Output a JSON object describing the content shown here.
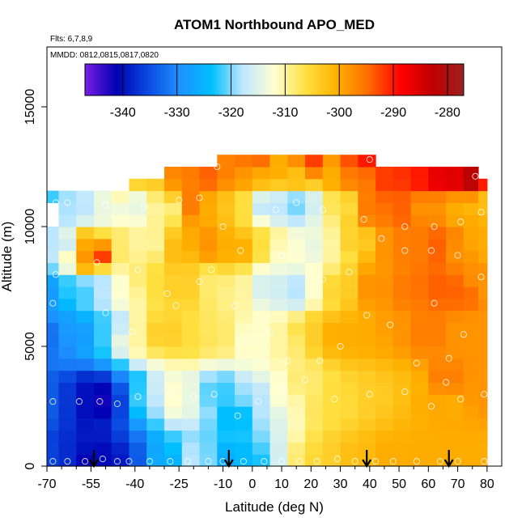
{
  "chart_data": {
    "type": "heatmap",
    "title": "ATOM1 Northbound APO_MED",
    "annotations": [
      "Flts: 6,7,8,9",
      "MMDD: 0812,0815,0817,0820"
    ],
    "xlabel": "Latitude (deg N)",
    "ylabel": "Altitude (m)",
    "xlim": [
      -70,
      85
    ],
    "ylim": [
      0,
      17500
    ],
    "x_ticks": [
      -70,
      -55,
      -40,
      -25,
      -10,
      0,
      10,
      20,
      30,
      40,
      50,
      60,
      70,
      80
    ],
    "x_tick_labels": [
      "-70",
      "-55",
      "-40",
      "-25",
      "-10",
      "0",
      "10",
      "20",
      "30",
      "40",
      "50",
      "60",
      "70",
      "80"
    ],
    "x_minor_ticks": [
      -65,
      -60,
      -50,
      -45,
      -35,
      -30,
      -20,
      -15,
      -5,
      5,
      15,
      25,
      35,
      45,
      55,
      65,
      75
    ],
    "y_ticks": [
      0,
      5000,
      10000,
      15000
    ],
    "y_tick_labels": [
      "0",
      "5000",
      "10000",
      "15000"
    ],
    "colorbar": {
      "range": [
        -347,
        -277
      ],
      "ticks": [
        -340,
        -330,
        -320,
        -310,
        -300,
        -290,
        -280
      ],
      "tick_labels": [
        "-340",
        "-330",
        "-320",
        "-310",
        "-300",
        "-290",
        "-280"
      ],
      "colors": [
        "#7a1fe0",
        "#0000b4",
        "#0a4be0",
        "#1e90ff",
        "#00bfff",
        "#bfe7ff",
        "#ffffd0",
        "#ffe040",
        "#ffb000",
        "#ff6a00",
        "#ff0000",
        "#c00000",
        "#9b2020"
      ]
    },
    "profile_markers_lat": [
      -54,
      -8,
      39,
      67
    ],
    "grid_lat": [
      -69,
      -63,
      -57,
      -51,
      -45,
      -39,
      -33,
      -27,
      -21,
      -15,
      -9,
      -3,
      3,
      9,
      15,
      21,
      27,
      33,
      39,
      45,
      51,
      57,
      63,
      69,
      75,
      79
    ],
    "grid_alt": [
      250,
      750,
      1250,
      1750,
      2250,
      2750,
      3250,
      3750,
      4250,
      4750,
      5250,
      5750,
      6250,
      6750,
      7250,
      7750,
      8250,
      8750,
      9250,
      9750,
      10250,
      10750,
      11250,
      11750,
      12250,
      12750
    ],
    "samples": [
      {
        "lat": -68,
        "alt": 200,
        "v": -336
      },
      {
        "lat": -60,
        "alt": 300,
        "v": -338
      },
      {
        "lat": -55,
        "alt": 200,
        "v": -342
      },
      {
        "lat": -48,
        "alt": 250,
        "v": -340
      },
      {
        "lat": -40,
        "alt": 200,
        "v": -334
      },
      {
        "lat": -30,
        "alt": 250,
        "v": -326
      },
      {
        "lat": -22,
        "alt": 300,
        "v": -318
      },
      {
        "lat": -15,
        "alt": 250,
        "v": -320
      },
      {
        "lat": -8,
        "alt": 200,
        "v": -326
      },
      {
        "lat": 0,
        "alt": 250,
        "v": -324
      },
      {
        "lat": 8,
        "alt": 300,
        "v": -316
      },
      {
        "lat": 16,
        "alt": 200,
        "v": -308
      },
      {
        "lat": 25,
        "alt": 250,
        "v": -304
      },
      {
        "lat": 35,
        "alt": 200,
        "v": -302
      },
      {
        "lat": 45,
        "alt": 250,
        "v": -300
      },
      {
        "lat": 55,
        "alt": 200,
        "v": -300
      },
      {
        "lat": 65,
        "alt": 250,
        "v": -300
      },
      {
        "lat": 75,
        "alt": 200,
        "v": -300
      },
      {
        "lat": 79,
        "alt": 300,
        "v": -300
      },
      {
        "lat": -68,
        "alt": 2700,
        "v": -334
      },
      {
        "lat": -58,
        "alt": 2700,
        "v": -340
      },
      {
        "lat": -52,
        "alt": 2700,
        "v": -342
      },
      {
        "lat": -45,
        "alt": 2600,
        "v": -336
      },
      {
        "lat": -38,
        "alt": 2800,
        "v": -322
      },
      {
        "lat": -28,
        "alt": 2900,
        "v": -312
      },
      {
        "lat": -20,
        "alt": 2900,
        "v": -314
      },
      {
        "lat": -12,
        "alt": 3000,
        "v": -322
      },
      {
        "lat": -6,
        "alt": 2100,
        "v": -324
      },
      {
        "lat": 2,
        "alt": 2700,
        "v": -318
      },
      {
        "lat": 10,
        "alt": 3200,
        "v": -312
      },
      {
        "lat": 18,
        "alt": 3500,
        "v": -308
      },
      {
        "lat": 28,
        "alt": 2800,
        "v": -306
      },
      {
        "lat": 40,
        "alt": 3000,
        "v": -304
      },
      {
        "lat": 52,
        "alt": 3100,
        "v": -302
      },
      {
        "lat": 60,
        "alt": 2900,
        "v": -300
      },
      {
        "lat": 66,
        "alt": 3500,
        "v": -296
      },
      {
        "lat": 70,
        "alt": 2700,
        "v": -300
      },
      {
        "lat": 78,
        "alt": 3000,
        "v": -298
      },
      {
        "lat": -68,
        "alt": 5400,
        "v": -332
      },
      {
        "lat": -60,
        "alt": 5600,
        "v": -328
      },
      {
        "lat": -50,
        "alt": 5800,
        "v": -322
      },
      {
        "lat": -40,
        "alt": 5500,
        "v": -310
      },
      {
        "lat": -30,
        "alt": 5600,
        "v": -304
      },
      {
        "lat": -20,
        "alt": 5400,
        "v": -306
      },
      {
        "lat": -10,
        "alt": 5500,
        "v": -308
      },
      {
        "lat": 0,
        "alt": 5300,
        "v": -312
      },
      {
        "lat": 10,
        "alt": 5400,
        "v": -310
      },
      {
        "lat": 20,
        "alt": 5600,
        "v": -304
      },
      {
        "lat": 30,
        "alt": 5500,
        "v": -300
      },
      {
        "lat": 40,
        "alt": 5600,
        "v": -300
      },
      {
        "lat": 50,
        "alt": 5800,
        "v": -298
      },
      {
        "lat": 60,
        "alt": 5700,
        "v": -296
      },
      {
        "lat": 70,
        "alt": 5500,
        "v": -298
      },
      {
        "lat": 78,
        "alt": 5800,
        "v": -298
      },
      {
        "lat": -68,
        "alt": 7200,
        "v": -328
      },
      {
        "lat": -60,
        "alt": 7400,
        "v": -322
      },
      {
        "lat": -52,
        "alt": 7600,
        "v": -318
      },
      {
        "lat": -44,
        "alt": 7400,
        "v": -312
      },
      {
        "lat": -34,
        "alt": 7600,
        "v": -306
      },
      {
        "lat": -24,
        "alt": 7500,
        "v": -304
      },
      {
        "lat": -14,
        "alt": 7600,
        "v": -308
      },
      {
        "lat": -4,
        "alt": 7400,
        "v": -310
      },
      {
        "lat": 6,
        "alt": 7500,
        "v": -316
      },
      {
        "lat": 14,
        "alt": 7400,
        "v": -318
      },
      {
        "lat": 22,
        "alt": 7600,
        "v": -312
      },
      {
        "lat": 30,
        "alt": 7500,
        "v": -304
      },
      {
        "lat": 40,
        "alt": 7500,
        "v": -298
      },
      {
        "lat": 52,
        "alt": 7400,
        "v": -296
      },
      {
        "lat": 62,
        "alt": 7500,
        "v": -294
      },
      {
        "lat": 72,
        "alt": 7300,
        "v": -294
      },
      {
        "lat": 78,
        "alt": 7600,
        "v": -298
      },
      {
        "lat": -66,
        "alt": 9200,
        "v": -318
      },
      {
        "lat": -58,
        "alt": 9000,
        "v": -300
      },
      {
        "lat": -54,
        "alt": 8800,
        "v": -290
      },
      {
        "lat": -46,
        "alt": 9200,
        "v": -308
      },
      {
        "lat": -36,
        "alt": 9300,
        "v": -310
      },
      {
        "lat": -26,
        "alt": 9000,
        "v": -302
      },
      {
        "lat": -16,
        "alt": 9300,
        "v": -298
      },
      {
        "lat": -6,
        "alt": 9100,
        "v": -300
      },
      {
        "lat": 4,
        "alt": 9300,
        "v": -306
      },
      {
        "lat": 12,
        "alt": 9000,
        "v": -312
      },
      {
        "lat": 20,
        "alt": 9200,
        "v": -314
      },
      {
        "lat": 28,
        "alt": 9100,
        "v": -310
      },
      {
        "lat": 36,
        "alt": 9300,
        "v": -304
      },
      {
        "lat": 44,
        "alt": 9100,
        "v": -298
      },
      {
        "lat": 54,
        "alt": 9200,
        "v": -296
      },
      {
        "lat": 64,
        "alt": 9200,
        "v": -294
      },
      {
        "lat": 72,
        "alt": 9000,
        "v": -298
      },
      {
        "lat": 78,
        "alt": 9300,
        "v": -300
      },
      {
        "lat": -68,
        "alt": 10800,
        "v": -322
      },
      {
        "lat": -60,
        "alt": 10800,
        "v": -318
      },
      {
        "lat": -50,
        "alt": 10700,
        "v": -314
      },
      {
        "lat": -40,
        "alt": 10900,
        "v": -314
      },
      {
        "lat": -30,
        "alt": 10800,
        "v": -310
      },
      {
        "lat": -22,
        "alt": 11000,
        "v": -296
      },
      {
        "lat": -14,
        "alt": 10800,
        "v": -300
      },
      {
        "lat": -4,
        "alt": 10900,
        "v": -306
      },
      {
        "lat": 6,
        "alt": 10900,
        "v": -318
      },
      {
        "lat": 14,
        "alt": 10900,
        "v": -320
      },
      {
        "lat": 22,
        "alt": 10900,
        "v": -316
      },
      {
        "lat": 30,
        "alt": 10900,
        "v": -306
      },
      {
        "lat": 40,
        "alt": 10800,
        "v": -296
      },
      {
        "lat": 50,
        "alt": 10800,
        "v": -294
      },
      {
        "lat": 60,
        "alt": 10900,
        "v": -298
      },
      {
        "lat": 70,
        "alt": 10800,
        "v": -300
      },
      {
        "lat": 78,
        "alt": 11000,
        "v": -302
      },
      {
        "lat": -42,
        "alt": 12000,
        "v": -304
      },
      {
        "lat": -32,
        "alt": 12000,
        "v": -304
      },
      {
        "lat": -24,
        "alt": 12100,
        "v": -296
      },
      {
        "lat": -14,
        "alt": 12200,
        "v": -294
      },
      {
        "lat": -4,
        "alt": 12300,
        "v": -298
      },
      {
        "lat": 6,
        "alt": 12200,
        "v": -300
      },
      {
        "lat": 16,
        "alt": 12100,
        "v": -302
      },
      {
        "lat": 26,
        "alt": 12100,
        "v": -300
      },
      {
        "lat": 36,
        "alt": 12100,
        "v": -296
      },
      {
        "lat": 46,
        "alt": 12000,
        "v": -292
      },
      {
        "lat": 56,
        "alt": 12000,
        "v": -290
      },
      {
        "lat": 66,
        "alt": 12000,
        "v": -286
      },
      {
        "lat": 74,
        "alt": 11900,
        "v": -282
      },
      {
        "lat": -20,
        "alt": 12700,
        "v": -296
      },
      {
        "lat": 0,
        "alt": 12800,
        "v": -294
      },
      {
        "lat": 20,
        "alt": 12800,
        "v": -292
      },
      {
        "lat": 38,
        "alt": 12800,
        "v": -290
      }
    ],
    "coverage": [
      {
        "alt_max": 250,
        "lat_min": -69,
        "lat_max": 79
      },
      {
        "alt_max": 9750,
        "lat_min": -69,
        "lat_max": 79
      },
      {
        "alt_max": 10750,
        "lat_min": -66,
        "lat_max": 79
      },
      {
        "alt_max": 11250,
        "lat_min": -69,
        "lat_max": 79
      },
      {
        "alt_max": 11750,
        "lat_min": -42,
        "lat_max": 79
      },
      {
        "alt_max": 12250,
        "lat_min": -28,
        "lat_max": 75
      },
      {
        "alt_max": 12750,
        "lat_min": -12,
        "lat_max": 41
      }
    ],
    "obs_circles": [
      {
        "lat": -68,
        "alt": 200
      },
      {
        "lat": -63,
        "alt": 200
      },
      {
        "lat": -57,
        "alt": 200
      },
      {
        "lat": -51,
        "alt": 300
      },
      {
        "lat": -46,
        "alt": 200
      },
      {
        "lat": -42,
        "alt": 200
      },
      {
        "lat": -35,
        "alt": 200
      },
      {
        "lat": -28,
        "alt": 200
      },
      {
        "lat": -22,
        "alt": 200
      },
      {
        "lat": -15,
        "alt": 200
      },
      {
        "lat": -10,
        "alt": 200
      },
      {
        "lat": -3,
        "alt": 200
      },
      {
        "lat": 4,
        "alt": 200
      },
      {
        "lat": 10,
        "alt": 200
      },
      {
        "lat": 16,
        "alt": 200
      },
      {
        "lat": 22,
        "alt": 200
      },
      {
        "lat": 29,
        "alt": 300
      },
      {
        "lat": 35,
        "alt": 200
      },
      {
        "lat": 42,
        "alt": 200
      },
      {
        "lat": 48,
        "alt": 200
      },
      {
        "lat": 56,
        "alt": 200
      },
      {
        "lat": 64,
        "alt": 200
      },
      {
        "lat": 70,
        "alt": 200
      },
      {
        "lat": 79,
        "alt": 200
      },
      {
        "lat": -68,
        "alt": 2700
      },
      {
        "lat": -59,
        "alt": 2700
      },
      {
        "lat": -52,
        "alt": 2700
      },
      {
        "lat": -46,
        "alt": 2600
      },
      {
        "lat": -39,
        "alt": 2900
      },
      {
        "lat": -28,
        "alt": 3000
      },
      {
        "lat": -20,
        "alt": 2900
      },
      {
        "lat": -13,
        "alt": 3000
      },
      {
        "lat": -5,
        "alt": 2100
      },
      {
        "lat": 2,
        "alt": 2700
      },
      {
        "lat": 11,
        "alt": 3200
      },
      {
        "lat": 18,
        "alt": 3600
      },
      {
        "lat": 28,
        "alt": 2800
      },
      {
        "lat": 40,
        "alt": 3000
      },
      {
        "lat": 52,
        "alt": 3100
      },
      {
        "lat": 61,
        "alt": 2500
      },
      {
        "lat": 66,
        "alt": 3500
      },
      {
        "lat": 71,
        "alt": 2800
      },
      {
        "lat": 79,
        "alt": 3000
      },
      {
        "lat": -68,
        "alt": 6800
      },
      {
        "lat": -50,
        "alt": 6400
      },
      {
        "lat": -41,
        "alt": 5600
      },
      {
        "lat": -26,
        "alt": 6700
      },
      {
        "lat": -18,
        "alt": 7700
      },
      {
        "lat": -6,
        "alt": 6700
      },
      {
        "lat": 6,
        "alt": 5600
      },
      {
        "lat": 12,
        "alt": 4400
      },
      {
        "lat": 23,
        "alt": 4400
      },
      {
        "lat": 30,
        "alt": 5000
      },
      {
        "lat": 39,
        "alt": 6300
      },
      {
        "lat": 47,
        "alt": 5900
      },
      {
        "lat": 56,
        "alt": 4300
      },
      {
        "lat": 62,
        "alt": 6800
      },
      {
        "lat": 67,
        "alt": 4500
      },
      {
        "lat": 72,
        "alt": 5500
      },
      {
        "lat": 78,
        "alt": 7900
      },
      {
        "lat": -67,
        "alt": 8000
      },
      {
        "lat": -53,
        "alt": 8500
      },
      {
        "lat": -39,
        "alt": 8200
      },
      {
        "lat": -29,
        "alt": 7200
      },
      {
        "lat": -14,
        "alt": 8200
      },
      {
        "lat": -4,
        "alt": 9000
      },
      {
        "lat": 10,
        "alt": 8800
      },
      {
        "lat": 24,
        "alt": 7800
      },
      {
        "lat": 33,
        "alt": 8100
      },
      {
        "lat": 44,
        "alt": 9500
      },
      {
        "lat": 52,
        "alt": 9000
      },
      {
        "lat": 61,
        "alt": 9000
      },
      {
        "lat": 70,
        "alt": 8800
      },
      {
        "lat": -67,
        "alt": 11000
      },
      {
        "lat": -63,
        "alt": 11000
      },
      {
        "lat": -50,
        "alt": 10900
      },
      {
        "lat": -37,
        "alt": 10800
      },
      {
        "lat": -25,
        "alt": 11100
      },
      {
        "lat": -18,
        "alt": 11200
      },
      {
        "lat": -10,
        "alt": 10000
      },
      {
        "lat": 8,
        "alt": 10700
      },
      {
        "lat": 15,
        "alt": 11000
      },
      {
        "lat": 24,
        "alt": 10700
      },
      {
        "lat": 38,
        "alt": 10300
      },
      {
        "lat": 52,
        "alt": 10000
      },
      {
        "lat": 62,
        "alt": 10000
      },
      {
        "lat": 71,
        "alt": 10200
      },
      {
        "lat": 78,
        "alt": 10600
      },
      {
        "lat": -12,
        "alt": 12500
      },
      {
        "lat": 40,
        "alt": 12800
      },
      {
        "lat": 76,
        "alt": 12100
      }
    ]
  }
}
